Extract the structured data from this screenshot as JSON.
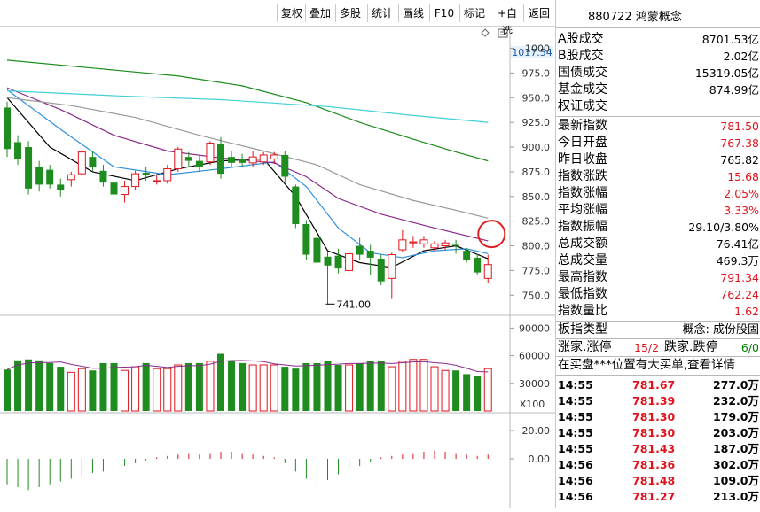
{
  "toolbar": {
    "buttons": [
      "复权",
      "叠加",
      "多股",
      "统计",
      "画线",
      "F10",
      "标记",
      "+自选",
      "返回"
    ]
  },
  "price_axis": {
    "current_label": "1017.54",
    "ticks": [
      "1000",
      "975.0",
      "950.0",
      "925.0",
      "900.0",
      "875.0",
      "850.0",
      "825.0",
      "800.0",
      "775.0",
      "750.0"
    ]
  },
  "min_marker": "741.00",
  "volume_axis": {
    "ticks": [
      "90000",
      "60000",
      "30000"
    ],
    "unit": "X100"
  },
  "macd_axis": {
    "ticks": [
      "20.00",
      "0.00"
    ]
  },
  "colors": {
    "up": "#e0141c",
    "down": "#1e8c1e",
    "ma5": "#000000",
    "ma10": "#2f8fdd",
    "ma20": "#8a2b8a",
    "ma30": "#9a9a9a",
    "ma60": "#1a8c1a",
    "ma120": "#3fd0d8",
    "circle": "#e02020"
  },
  "chart_data": {
    "type": "candlestick",
    "ylim": [
      735,
      1022
    ],
    "candles": [
      {
        "o": 940,
        "h": 946,
        "l": 890,
        "c": 898
      },
      {
        "o": 905,
        "h": 912,
        "l": 882,
        "c": 888
      },
      {
        "o": 900,
        "h": 906,
        "l": 852,
        "c": 858
      },
      {
        "o": 880,
        "h": 886,
        "l": 855,
        "c": 862
      },
      {
        "o": 877,
        "h": 882,
        "l": 858,
        "c": 862
      },
      {
        "o": 862,
        "h": 868,
        "l": 850,
        "c": 856
      },
      {
        "o": 867,
        "h": 875,
        "l": 860,
        "c": 872
      },
      {
        "o": 873,
        "h": 898,
        "l": 870,
        "c": 895
      },
      {
        "o": 890,
        "h": 896,
        "l": 876,
        "c": 880
      },
      {
        "o": 876,
        "h": 882,
        "l": 860,
        "c": 864
      },
      {
        "o": 864,
        "h": 870,
        "l": 846,
        "c": 852
      },
      {
        "o": 852,
        "h": 866,
        "l": 844,
        "c": 860
      },
      {
        "o": 860,
        "h": 876,
        "l": 856,
        "c": 873
      },
      {
        "o": 874,
        "h": 880,
        "l": 866,
        "c": 872
      },
      {
        "o": 866,
        "h": 872,
        "l": 862,
        "c": 866
      },
      {
        "o": 866,
        "h": 882,
        "l": 863,
        "c": 878
      },
      {
        "o": 878,
        "h": 900,
        "l": 875,
        "c": 898
      },
      {
        "o": 890,
        "h": 895,
        "l": 880,
        "c": 886
      },
      {
        "o": 886,
        "h": 892,
        "l": 875,
        "c": 880
      },
      {
        "o": 885,
        "h": 906,
        "l": 882,
        "c": 904
      },
      {
        "o": 903,
        "h": 910,
        "l": 868,
        "c": 873
      },
      {
        "o": 890,
        "h": 896,
        "l": 880,
        "c": 884
      },
      {
        "o": 888,
        "h": 893,
        "l": 880,
        "c": 884
      },
      {
        "o": 884,
        "h": 896,
        "l": 880,
        "c": 890
      },
      {
        "o": 885,
        "h": 895,
        "l": 882,
        "c": 892
      },
      {
        "o": 888,
        "h": 895,
        "l": 883,
        "c": 892
      },
      {
        "o": 892,
        "h": 896,
        "l": 864,
        "c": 870
      },
      {
        "o": 860,
        "h": 862,
        "l": 818,
        "c": 822
      },
      {
        "o": 822,
        "h": 826,
        "l": 786,
        "c": 791
      },
      {
        "o": 808,
        "h": 812,
        "l": 780,
        "c": 783
      },
      {
        "o": 789,
        "h": 794,
        "l": 741,
        "c": 780
      },
      {
        "o": 790,
        "h": 797,
        "l": 772,
        "c": 777
      },
      {
        "o": 775,
        "h": 795,
        "l": 772,
        "c": 792
      },
      {
        "o": 800,
        "h": 808,
        "l": 786,
        "c": 791
      },
      {
        "o": 795,
        "h": 801,
        "l": 770,
        "c": 788
      },
      {
        "o": 787,
        "h": 791,
        "l": 760,
        "c": 764
      },
      {
        "o": 767,
        "h": 793,
        "l": 747,
        "c": 791
      },
      {
        "o": 796,
        "h": 816,
        "l": 794,
        "c": 806
      },
      {
        "o": 803,
        "h": 810,
        "l": 798,
        "c": 804
      },
      {
        "o": 802,
        "h": 810,
        "l": 798,
        "c": 806
      },
      {
        "o": 798,
        "h": 805,
        "l": 795,
        "c": 802
      },
      {
        "o": 800,
        "h": 806,
        "l": 796,
        "c": 803
      },
      {
        "o": 801,
        "h": 806,
        "l": 792,
        "c": 800
      },
      {
        "o": 795,
        "h": 798,
        "l": 783,
        "c": 786
      },
      {
        "o": 788,
        "h": 792,
        "l": 770,
        "c": 773
      },
      {
        "o": 767,
        "h": 791,
        "l": 762,
        "c": 781
      }
    ],
    "ma_series": [
      {
        "key": "ma5",
        "values": [
          [
            0,
            950
          ],
          [
            4,
            900
          ],
          [
            8,
            875
          ],
          [
            12,
            866
          ],
          [
            16,
            878
          ],
          [
            20,
            886
          ],
          [
            24,
            888
          ],
          [
            27,
            850
          ],
          [
            30,
            795
          ],
          [
            33,
            783
          ],
          [
            36,
            778
          ],
          [
            39,
            795
          ],
          [
            42,
            800
          ],
          [
            45,
            787
          ]
        ]
      },
      {
        "key": "ma10",
        "values": [
          [
            0,
            958
          ],
          [
            5,
            918
          ],
          [
            10,
            880
          ],
          [
            15,
            872
          ],
          [
            20,
            878
          ],
          [
            25,
            885
          ],
          [
            28,
            860
          ],
          [
            31,
            818
          ],
          [
            34,
            793
          ],
          [
            37,
            788
          ],
          [
            40,
            795
          ],
          [
            43,
            797
          ],
          [
            45,
            792
          ]
        ]
      },
      {
        "key": "ma20",
        "values": [
          [
            0,
            960
          ],
          [
            5,
            938
          ],
          [
            10,
            912
          ],
          [
            15,
            896
          ],
          [
            20,
            889
          ],
          [
            25,
            884
          ],
          [
            28,
            870
          ],
          [
            31,
            848
          ],
          [
            35,
            832
          ],
          [
            40,
            818
          ],
          [
            45,
            805
          ]
        ]
      },
      {
        "key": "ma30",
        "values": [
          [
            0,
            950
          ],
          [
            6,
            942
          ],
          [
            12,
            930
          ],
          [
            18,
            912
          ],
          [
            24,
            896
          ],
          [
            29,
            882
          ],
          [
            33,
            862
          ],
          [
            38,
            846
          ],
          [
            42,
            836
          ],
          [
            45,
            828
          ]
        ]
      },
      {
        "key": "ma60",
        "values": [
          [
            0,
            988
          ],
          [
            8,
            980
          ],
          [
            16,
            972
          ],
          [
            22,
            962
          ],
          [
            28,
            945
          ],
          [
            33,
            925
          ],
          [
            38,
            908
          ],
          [
            42,
            895
          ],
          [
            45,
            886
          ]
        ]
      },
      {
        "key": "ma120",
        "values": [
          [
            0,
            957
          ],
          [
            10,
            952
          ],
          [
            20,
            948
          ],
          [
            30,
            941
          ],
          [
            38,
            932
          ],
          [
            45,
            925
          ]
        ]
      }
    ],
    "volume": [
      45,
      55,
      56,
      55,
      52,
      48,
      42,
      46,
      44,
      52,
      52,
      44,
      48,
      52,
      46,
      46,
      50,
      52,
      52,
      54,
      62,
      54,
      52,
      50,
      50,
      50,
      48,
      46,
      52,
      52,
      54,
      50,
      50,
      52,
      54,
      54,
      48,
      54,
      56,
      56,
      48,
      44,
      44,
      40,
      38,
      46
    ],
    "volume_ylim": [
      0,
      100000
    ],
    "macd_ylim": [
      -35,
      30
    ],
    "macd_bars": [
      -18,
      -20,
      -22,
      -20,
      -18,
      -16,
      -14,
      -12,
      -10,
      -9,
      -7,
      -5,
      -3,
      -1,
      1,
      2,
      3,
      4,
      3,
      4,
      5,
      5,
      4,
      3,
      2,
      1,
      -3,
      -9,
      -14,
      -17,
      -15,
      -11,
      -8,
      -5,
      -2,
      1,
      2,
      3,
      4,
      5,
      6,
      5,
      4,
      3,
      2,
      3
    ]
  },
  "right_panel": {
    "title": "880722 鸿蒙概念",
    "stats": [
      {
        "label": "A股成交",
        "value": "8701.53亿",
        "color": "black"
      },
      {
        "label": "B股成交",
        "value": "2.02亿",
        "color": "black"
      },
      {
        "label": "国债成交",
        "value": "15319.05亿",
        "color": "black"
      },
      {
        "label": "基金成交",
        "value": "874.99亿",
        "color": "black"
      },
      {
        "label": "权证成交",
        "value": "",
        "color": "black"
      }
    ],
    "quotes": [
      {
        "label": "最新指数",
        "value": "781.50",
        "color": "red"
      },
      {
        "label": "今日开盘",
        "value": "767.38",
        "color": "red"
      },
      {
        "label": "昨日收盘",
        "value": "765.82",
        "color": "black"
      },
      {
        "label": "指数涨跌",
        "value": "15.68",
        "color": "red"
      },
      {
        "label": "指数涨幅",
        "value": "2.05%",
        "color": "red"
      },
      {
        "label": "平均涨幅",
        "value": "3.33%",
        "color": "red"
      },
      {
        "label": "指数振幅",
        "value": "29.10/3.80%",
        "color": "black"
      },
      {
        "label": "总成交额",
        "value": "76.41亿",
        "color": "black"
      },
      {
        "label": "总成交量",
        "value": "469.3万",
        "color": "black"
      },
      {
        "label": "最高指数",
        "value": "791.34",
        "color": "red"
      },
      {
        "label": "最低指数",
        "value": "762.24",
        "color": "red"
      },
      {
        "label": "指数量比",
        "value": "1.62",
        "color": "red"
      }
    ],
    "board": {
      "label": "板指类型",
      "value": "概念: 成份股固"
    },
    "breadth": {
      "up_label": "涨家.涨停",
      "up_value": "15/2",
      "down_label": "跌家.跌停",
      "down_value": "6/0"
    },
    "notice": "在买盘***位置有大买单,查看详情",
    "ticks": [
      {
        "time": "14:55",
        "price": "781.67",
        "vol": "277.0万"
      },
      {
        "time": "14:55",
        "price": "781.39",
        "vol": "232.0万"
      },
      {
        "time": "14:55",
        "price": "781.30",
        "vol": "179.0万"
      },
      {
        "time": "14:55",
        "price": "781.30",
        "vol": "203.0万"
      },
      {
        "time": "14:55",
        "price": "781.43",
        "vol": "187.0万"
      },
      {
        "time": "14:56",
        "price": "781.36",
        "vol": "302.0万"
      },
      {
        "time": "14:56",
        "price": "781.48",
        "vol": "109.0万"
      },
      {
        "time": "14:56",
        "price": "781.27",
        "vol": "213.0万"
      }
    ]
  }
}
